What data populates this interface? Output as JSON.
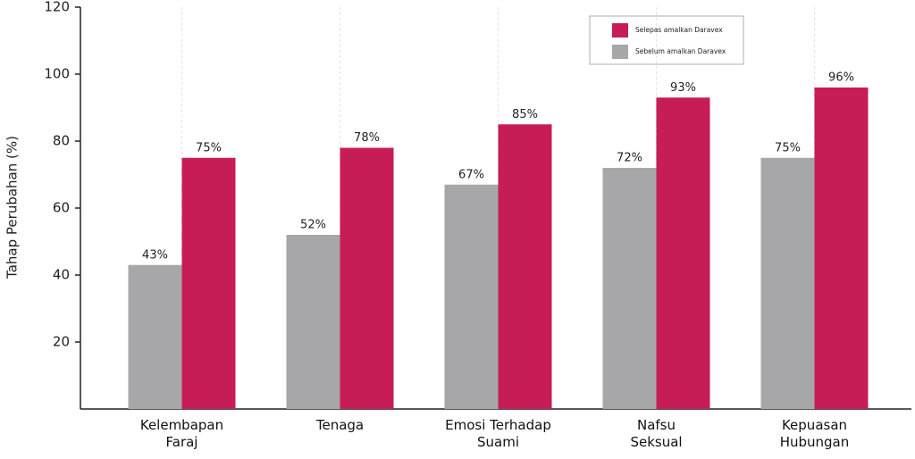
{
  "chart_data": {
    "type": "bar",
    "y_label": "Tahap Perubahan (%)",
    "categories": [
      "Kelembapan\nFaraj",
      "Tenaga",
      "Emosi Terhadap\nSuami",
      "Nafsu\nSeksual",
      "Kepuasan\nHubungan"
    ],
    "series": [
      {
        "name": "Sebelum amalkan Daravex",
        "color": "#a7a7a9",
        "values": [
          43,
          52,
          67,
          72,
          75
        ],
        "value_labels": [
          "43%",
          "52%",
          "67%",
          "72%",
          "75%"
        ]
      },
      {
        "name": "Selepas amalkan Daravex",
        "color": "#c61d57",
        "values": [
          75,
          78,
          85,
          93,
          96
        ],
        "value_labels": [
          "75%",
          "78%",
          "85%",
          "93%",
          "96%"
        ]
      }
    ],
    "ylim": [
      0,
      120
    ],
    "yticks": [
      20,
      40,
      60,
      80,
      100,
      120
    ]
  }
}
